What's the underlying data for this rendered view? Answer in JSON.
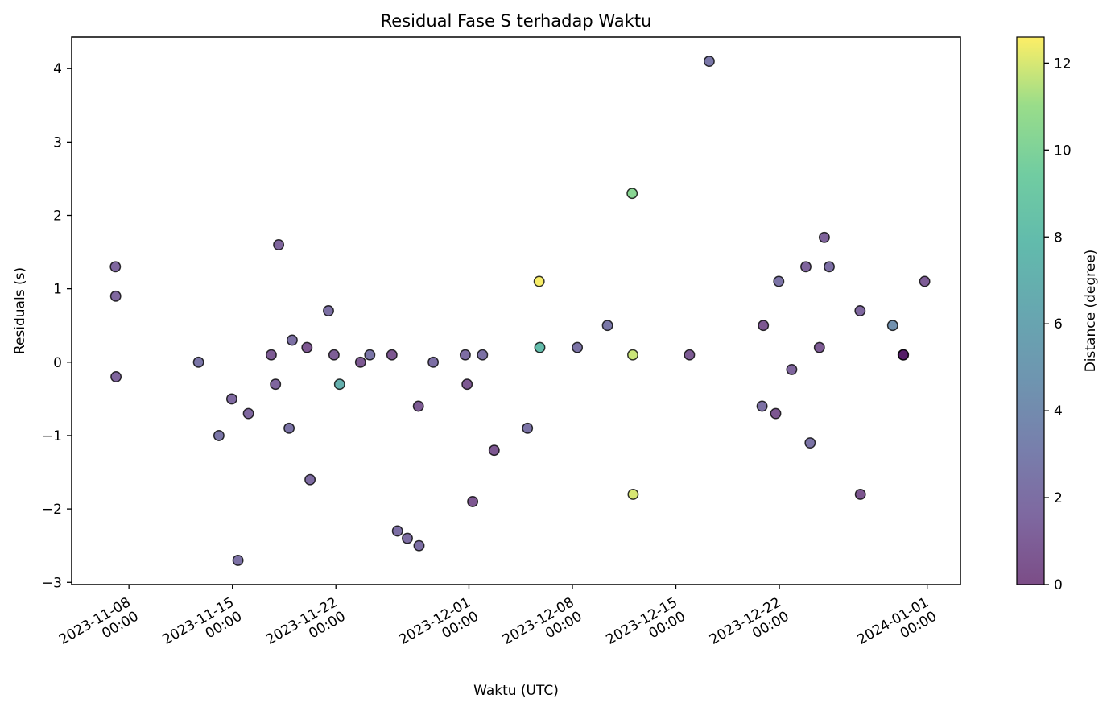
{
  "chart_data": {
    "type": "scatter",
    "title": "Residual Fase S terhadap Waktu",
    "xlabel": "Waktu (UTC)",
    "ylabel": "Residuals (s)",
    "ylim": [
      -3.03,
      4.43
    ],
    "xlim": [
      "2023-11-04T03:00",
      "2024-01-03T06:00"
    ],
    "yticks": [
      -3,
      -2,
      -1,
      0,
      1,
      2,
      3,
      4
    ],
    "xticks": [
      {
        "value": "2023-11-08T00:00",
        "line1": "2023-11-08",
        "line2": "00:00"
      },
      {
        "value": "2023-11-15T00:00",
        "line1": "2023-11-15",
        "line2": "00:00"
      },
      {
        "value": "2023-11-22T00:00",
        "line1": "2023-11-22",
        "line2": "00:00"
      },
      {
        "value": "2023-12-01T00:00",
        "line1": "2023-12-01",
        "line2": "00:00"
      },
      {
        "value": "2023-12-08T00:00",
        "line1": "2023-12-08",
        "line2": "00:00"
      },
      {
        "value": "2023-12-15T00:00",
        "line1": "2023-12-15",
        "line2": "00:00"
      },
      {
        "value": "2023-12-22T00:00",
        "line1": "2023-12-22",
        "line2": "00:00"
      },
      {
        "value": "2024-01-01T00:00",
        "line1": "2024-01-01",
        "line2": "00:00"
      }
    ],
    "colorbar": {
      "label": "Distance (degree)",
      "range": [
        0,
        12.6
      ],
      "ticks": [
        0,
        2,
        4,
        6,
        8,
        10,
        12
      ],
      "colormap": "viridis"
    },
    "grid": false,
    "points": [
      {
        "t": "2023-11-07T02:00",
        "y": 1.3,
        "c": 1.5
      },
      {
        "t": "2023-11-07T02:30",
        "y": 0.9,
        "c": 1.5
      },
      {
        "t": "2023-11-07T03:00",
        "y": -0.2,
        "c": 1.4
      },
      {
        "t": "2023-11-12T17:00",
        "y": 0.0,
        "c": 2.5
      },
      {
        "t": "2023-11-14T02:00",
        "y": -1.0,
        "c": 2.5
      },
      {
        "t": "2023-11-14T23:00",
        "y": -0.5,
        "c": 1.6
      },
      {
        "t": "2023-11-15T09:00",
        "y": -2.7,
        "c": 2.2
      },
      {
        "t": "2023-11-16T02:00",
        "y": -0.7,
        "c": 1.5
      },
      {
        "t": "2023-11-17T15:00",
        "y": 0.1,
        "c": 0.8
      },
      {
        "t": "2023-11-17T22:00",
        "y": -0.3,
        "c": 1.4
      },
      {
        "t": "2023-11-18T03:00",
        "y": 1.6,
        "c": 1.4
      },
      {
        "t": "2023-11-18T20:00",
        "y": -0.9,
        "c": 2.3
      },
      {
        "t": "2023-11-19T01:00",
        "y": 0.3,
        "c": 2.1
      },
      {
        "t": "2023-11-20T01:00",
        "y": 0.2,
        "c": 0.6
      },
      {
        "t": "2023-11-20T06:00",
        "y": -1.6,
        "c": 1.8
      },
      {
        "t": "2023-11-21T12:00",
        "y": 0.7,
        "c": 2.1
      },
      {
        "t": "2023-11-21T21:00",
        "y": 0.1,
        "c": 1.0
      },
      {
        "t": "2023-11-22T06:00",
        "y": -0.3,
        "c": 7.0
      },
      {
        "t": "2023-11-23T16:00",
        "y": 0.0,
        "c": 0.7
      },
      {
        "t": "2023-11-24T07:00",
        "y": 0.1,
        "c": 2.5
      },
      {
        "t": "2023-11-25T19:00",
        "y": 0.1,
        "c": 0.6
      },
      {
        "t": "2023-11-26T04:00",
        "y": -2.3,
        "c": 2.0
      },
      {
        "t": "2023-11-26T20:00",
        "y": -2.4,
        "c": 1.9
      },
      {
        "t": "2023-11-27T14:00",
        "y": -0.6,
        "c": 0.8
      },
      {
        "t": "2023-11-27T15:00",
        "y": -2.5,
        "c": 2.0
      },
      {
        "t": "2023-11-28T14:00",
        "y": 0.0,
        "c": 2.0
      },
      {
        "t": "2023-11-30T18:00",
        "y": 0.1,
        "c": 1.9
      },
      {
        "t": "2023-11-30T21:00",
        "y": -0.3,
        "c": 0.7
      },
      {
        "t": "2023-12-01T06:00",
        "y": -1.9,
        "c": 0.6
      },
      {
        "t": "2023-12-01T22:00",
        "y": 0.1,
        "c": 2.2
      },
      {
        "t": "2023-12-02T17:00",
        "y": -1.2,
        "c": 0.6
      },
      {
        "t": "2023-12-04T23:00",
        "y": -0.9,
        "c": 2.3
      },
      {
        "t": "2023-12-05T18:00",
        "y": 1.1,
        "c": 12.5
      },
      {
        "t": "2023-12-05T19:00",
        "y": 0.2,
        "c": 8.0
      },
      {
        "t": "2023-12-08T08:00",
        "y": 0.2,
        "c": 2.3
      },
      {
        "t": "2023-12-10T09:00",
        "y": 0.5,
        "c": 2.6
      },
      {
        "t": "2023-12-12T01:00",
        "y": 2.3,
        "c": 10.4
      },
      {
        "t": "2023-12-12T02:00",
        "y": 0.1,
        "c": 11.8
      },
      {
        "t": "2023-12-12T02:30",
        "y": -1.8,
        "c": 12.0
      },
      {
        "t": "2023-12-15T22:00",
        "y": 0.1,
        "c": 0.8
      },
      {
        "t": "2023-12-17T06:00",
        "y": 4.1,
        "c": 2.6
      },
      {
        "t": "2023-12-20T20:00",
        "y": -0.6,
        "c": 2.1
      },
      {
        "t": "2023-12-20T22:00",
        "y": 0.5,
        "c": 0.6
      },
      {
        "t": "2023-12-21T18:00",
        "y": -0.7,
        "c": 0.6
      },
      {
        "t": "2023-12-21T23:00",
        "y": 1.1,
        "c": 2.3
      },
      {
        "t": "2023-12-22T20:00",
        "y": -0.1,
        "c": 1.4
      },
      {
        "t": "2023-12-23T19:00",
        "y": 1.3,
        "c": 1.3
      },
      {
        "t": "2023-12-24T02:00",
        "y": -1.1,
        "c": 2.3
      },
      {
        "t": "2023-12-24T17:00",
        "y": 0.2,
        "c": 0.8
      },
      {
        "t": "2023-12-25T01:00",
        "y": 1.7,
        "c": 1.2
      },
      {
        "t": "2023-12-25T09:00",
        "y": 1.3,
        "c": 2.0
      },
      {
        "t": "2023-12-27T11:00",
        "y": 0.7,
        "c": 1.5
      },
      {
        "t": "2023-12-27T11:30",
        "y": -1.8,
        "c": 0.5
      },
      {
        "t": "2023-12-29T16:00",
        "y": 0.5,
        "c": 4.4
      },
      {
        "t": "2023-12-30T09:00",
        "y": 0.1,
        "c": 0.1
      },
      {
        "t": "2023-12-30T09:30",
        "y": 0.1,
        "c": 0.3
      },
      {
        "t": "2023-12-31T20:00",
        "y": 1.1,
        "c": 0.9
      }
    ]
  }
}
